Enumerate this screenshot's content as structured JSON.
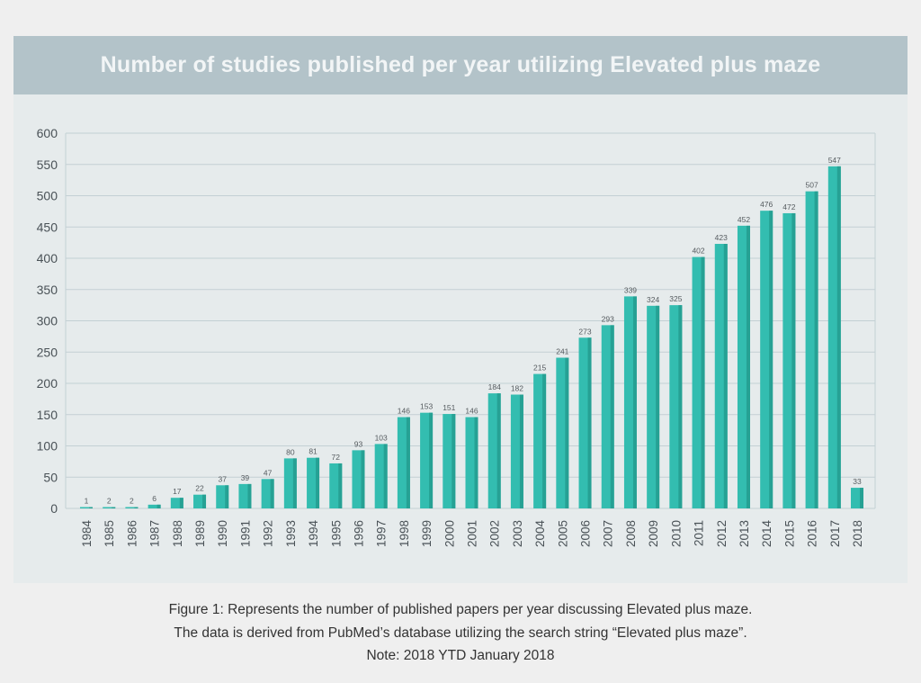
{
  "chart_data": {
    "type": "bar",
    "title": "Number of studies published per year utilizing Elevated plus maze",
    "xlabel": "",
    "ylabel": "",
    "ylim": [
      0,
      600
    ],
    "yticks": [
      0,
      50,
      100,
      150,
      200,
      250,
      300,
      350,
      400,
      450,
      500,
      550,
      600
    ],
    "grid": true,
    "categories": [
      "1984",
      "1985",
      "1986",
      "1987",
      "1988",
      "1989",
      "1990",
      "1991",
      "1992",
      "1993",
      "1994",
      "1995",
      "1996",
      "1997",
      "1998",
      "1999",
      "2000",
      "2001",
      "2002",
      "2003",
      "2004",
      "2005",
      "2006",
      "2007",
      "2008",
      "2009",
      "2010",
      "2011",
      "2012",
      "2013",
      "2014",
      "2015",
      "2016",
      "2017",
      "2018"
    ],
    "values": [
      1,
      2,
      2,
      6,
      17,
      22,
      37,
      39,
      47,
      80,
      81,
      72,
      93,
      103,
      146,
      153,
      151,
      146,
      184,
      182,
      215,
      241,
      273,
      293,
      339,
      324,
      325,
      402,
      423,
      452,
      476,
      472,
      507,
      547,
      33
    ],
    "colors": {
      "bar": "#33bdb0",
      "bar_shade": "#26a194",
      "grid": "#c3d0d4",
      "axis_text": "#4a5257",
      "label_text": "#555b5f"
    }
  },
  "caption": {
    "line1": "Figure 1: Represents the number of published papers per year discussing Elevated plus maze.",
    "line2": "The data is derived from PubMed’s database utilizing the search string “Elevated plus maze”.",
    "line3": "Note: 2018 YTD January 2018"
  }
}
